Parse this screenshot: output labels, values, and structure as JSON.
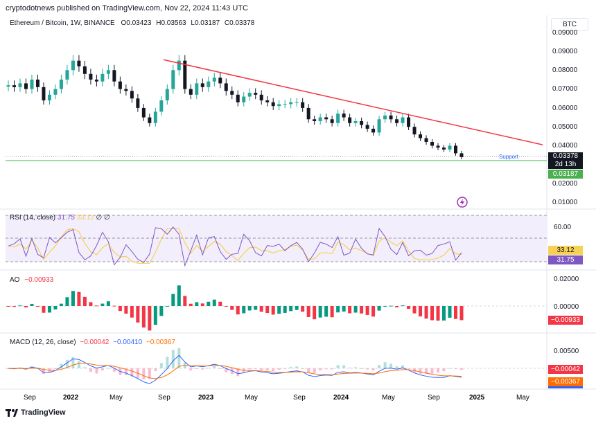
{
  "header": {
    "published": "cryptodotnews published on TradingView.com, Nov 22, 2024 11:43 UTC"
  },
  "symbol": {
    "name": "Ethereum / Bitcoin, 1W, BINANCE",
    "open_label": "O",
    "open": "0.03423",
    "high_label": "H",
    "high": "0.03563",
    "low_label": "L",
    "low": "0.03187",
    "close_label": "C",
    "close": "0.03378"
  },
  "currency_button": "BTC",
  "price_axis": {
    "ticks": [
      "0.09000",
      "0.08000",
      "0.07000",
      "0.06000",
      "0.05000",
      "0.04000",
      "0.02000",
      "0.01000"
    ],
    "last_price": "0.03378",
    "countdown": "2d 13h",
    "low_price": "0.03187"
  },
  "support_label": "Support",
  "rsi": {
    "label": "RSI (14, close)",
    "value": "31.75",
    "ma": "33.12",
    "extra": "∅ ∅",
    "tick": "60.00"
  },
  "ao": {
    "label": "AO",
    "value": "−0.00933",
    "ticks": [
      "0.02000",
      "0.00000"
    ]
  },
  "macd": {
    "label": "MACD (12, 26, close)",
    "hist": "−0.00042",
    "macd": "−0.00410",
    "signal": "−0.00367",
    "tick": "0.00500"
  },
  "time_axis": [
    "Sep",
    "2022",
    "May",
    "Sep",
    "2023",
    "May",
    "Sep",
    "2024",
    "May",
    "Sep",
    "2025",
    "May"
  ],
  "footer": {
    "brand": "TradingView"
  },
  "colors": {
    "up": "#26a69a",
    "down": "#131722",
    "trend": "#f23645",
    "support": "#4caf50",
    "rsi": "#7e57c2",
    "rsi_ma": "#f7d154",
    "ao_up": "#089981",
    "ao_down": "#f23645",
    "macd": "#2962ff",
    "signal": "#ff6d00"
  },
  "chart_data": {
    "type": "candlestick",
    "interval": "1W",
    "ylim": [
      0.005,
      0.1
    ],
    "closes_approx": [
      0.072,
      0.071,
      0.073,
      0.07,
      0.075,
      0.071,
      0.064,
      0.067,
      0.07,
      0.075,
      0.08,
      0.085,
      0.082,
      0.078,
      0.075,
      0.074,
      0.078,
      0.08,
      0.074,
      0.07,
      0.069,
      0.065,
      0.06,
      0.055,
      0.052,
      0.058,
      0.064,
      0.07,
      0.08,
      0.085,
      0.07,
      0.067,
      0.073,
      0.071,
      0.074,
      0.076,
      0.073,
      0.069,
      0.067,
      0.063,
      0.066,
      0.068,
      0.067,
      0.064,
      0.063,
      0.061,
      0.062,
      0.062,
      0.063,
      0.063,
      0.06,
      0.054,
      0.053,
      0.055,
      0.054,
      0.052,
      0.057,
      0.055,
      0.052,
      0.053,
      0.051,
      0.049,
      0.047,
      0.054,
      0.056,
      0.054,
      0.052,
      0.055,
      0.05,
      0.046,
      0.044,
      0.042,
      0.04,
      0.039,
      0.038,
      0.04,
      0.036,
      0.034
    ],
    "trendline": {
      "from": {
        "date": "2022-09",
        "price": 0.0855
      },
      "to": {
        "date": "2025-02",
        "price": 0.0405
      }
    },
    "support_level": 0.0315
  }
}
